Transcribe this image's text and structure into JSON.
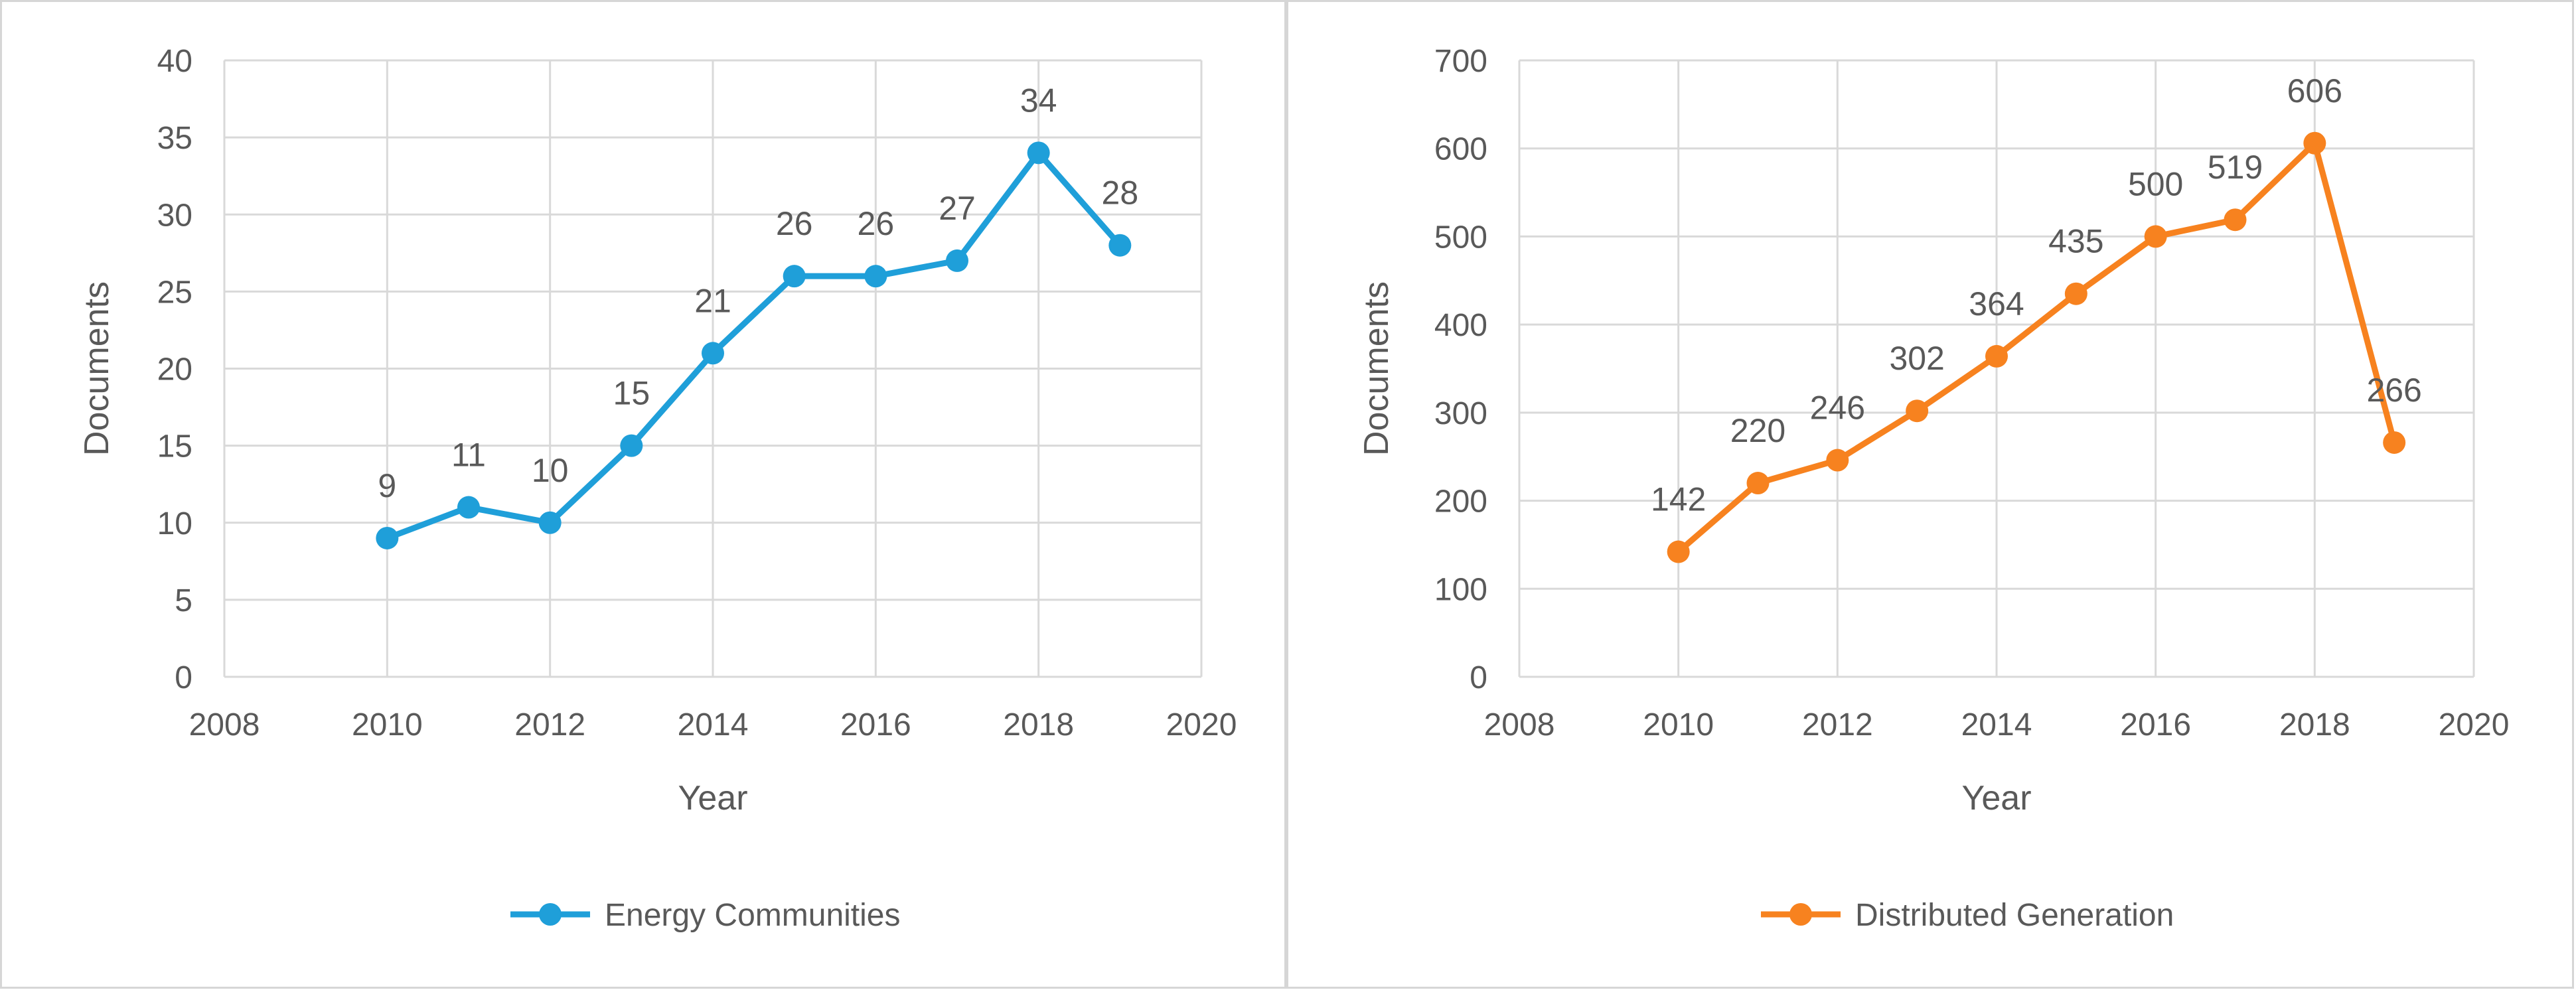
{
  "chart_data": [
    {
      "type": "line",
      "xlabel": "Year",
      "ylabel": "Documents",
      "xlim": [
        2008,
        2020
      ],
      "ylim": [
        0,
        40
      ],
      "x_ticks": [
        "2008",
        "2010",
        "2012",
        "2014",
        "2016",
        "2018",
        "2020"
      ],
      "y_ticks": [
        "0",
        "5",
        "10",
        "15",
        "20",
        "25",
        "30",
        "35",
        "40"
      ],
      "grid": true,
      "legend_position": "bottom",
      "series": [
        {
          "name": "Energy Communities",
          "color": "#1f9fd9",
          "x": [
            2010,
            2011,
            2012,
            2013,
            2014,
            2015,
            2016,
            2017,
            2018,
            2019
          ],
          "y": [
            9,
            11,
            10,
            15,
            21,
            26,
            26,
            27,
            34,
            28
          ],
          "labels": [
            "9",
            "11",
            "10",
            "15",
            "21",
            "26",
            "26",
            "27",
            "34",
            "28"
          ]
        }
      ]
    },
    {
      "type": "line",
      "xlabel": "Year",
      "ylabel": "Documents",
      "xlim": [
        2008,
        2020
      ],
      "ylim": [
        0,
        700
      ],
      "x_ticks": [
        "2008",
        "2010",
        "2012",
        "2014",
        "2016",
        "2018",
        "2020"
      ],
      "y_ticks": [
        "0",
        "100",
        "200",
        "300",
        "400",
        "500",
        "600",
        "700"
      ],
      "grid": true,
      "legend_position": "bottom",
      "series": [
        {
          "name": "Distributed Generation",
          "color": "#f7821f",
          "x": [
            2010,
            2011,
            2012,
            2013,
            2014,
            2015,
            2016,
            2017,
            2018,
            2019
          ],
          "y": [
            142,
            220,
            246,
            302,
            364,
            435,
            500,
            519,
            606,
            266
          ],
          "labels": [
            "142",
            "220",
            "246",
            "302",
            "364",
            "435",
            "500",
            "519",
            "606",
            "266"
          ]
        }
      ]
    }
  ]
}
